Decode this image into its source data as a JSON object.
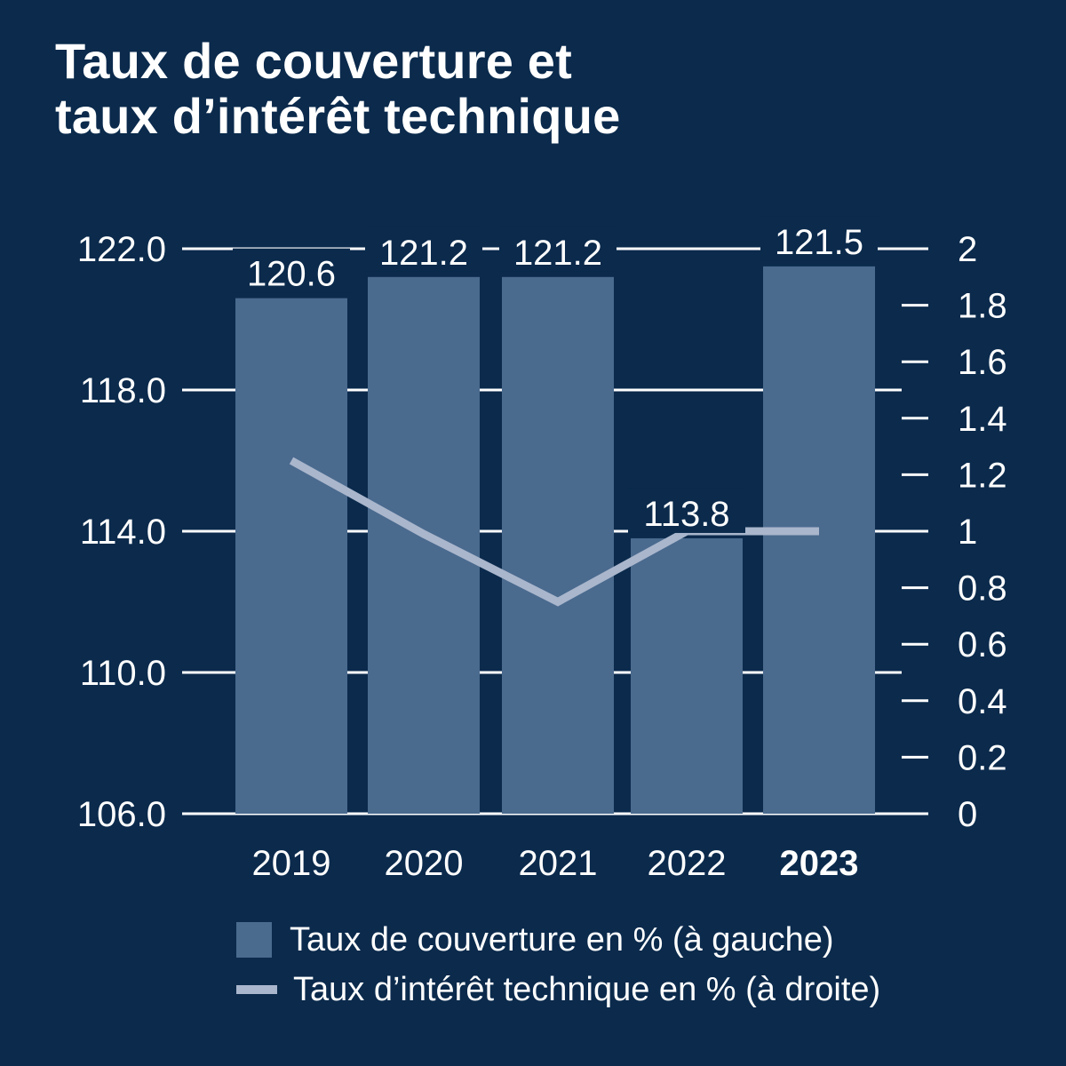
{
  "title": {
    "line1": "Taux de couverture et",
    "line2": "taux d’intérêt technique"
  },
  "colors": {
    "background": "#0b2a4c",
    "bar": "#4a6a8e",
    "line": "#a9b6cc",
    "grid": "#ffffff",
    "text": "#ffffff"
  },
  "chart_data": {
    "type": "bar",
    "categories": [
      "2019",
      "2020",
      "2021",
      "2022",
      "2023"
    ],
    "highlight_category": "2023",
    "series": [
      {
        "name": "Taux de couverture en % (à gauche)",
        "type": "bar",
        "axis": "left",
        "values": [
          120.6,
          121.2,
          121.2,
          113.8,
          121.5
        ],
        "labels": [
          "120.6",
          "121.2",
          "121.2",
          "113.8",
          "121.5"
        ]
      },
      {
        "name": "Taux d’intérêt technique en % (à droite)",
        "type": "line",
        "axis": "right",
        "values": [
          1.25,
          0.99,
          0.75,
          1.0,
          1.0
        ]
      }
    ],
    "y_left": {
      "lim": [
        106.0,
        122.0
      ],
      "ticks": [
        106.0,
        110.0,
        114.0,
        118.0,
        122.0
      ],
      "tick_labels": [
        "106.0",
        "110.0",
        "114.0",
        "118.0",
        "122.0"
      ]
    },
    "y_right": {
      "lim": [
        0,
        2
      ],
      "ticks": [
        0,
        0.2,
        0.4,
        0.6,
        0.8,
        1,
        1.2,
        1.4,
        1.6,
        1.8,
        2
      ],
      "tick_labels": [
        "0",
        "0.2",
        "0.4",
        "0.6",
        "0.8",
        "1",
        "1.2",
        "1.4",
        "1.6",
        "1.8",
        "2"
      ]
    },
    "grid": true,
    "legend_position": "bottom"
  },
  "legend": {
    "bar_label": "Taux de couverture en % (à gauche)",
    "line_label": "Taux d’intérêt technique en % (à droite)"
  }
}
